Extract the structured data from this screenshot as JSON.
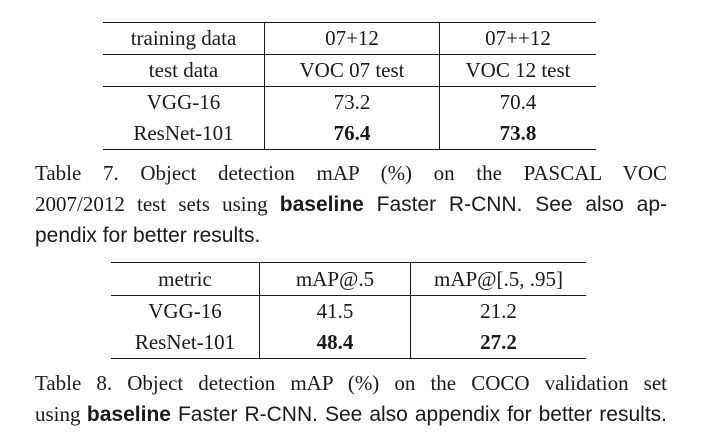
{
  "table7": {
    "header": [
      "training data",
      "07+12",
      "07++12"
    ],
    "subheader": [
      "test data",
      "VOC 07 test",
      "VOC 12 test"
    ],
    "rows": [
      {
        "model": "VGG-16",
        "values": [
          "73.2",
          "70.4"
        ]
      },
      {
        "model": "ResNet-101",
        "values": [
          "76.4",
          "73.8"
        ]
      }
    ],
    "caption": {
      "line1": "Table 7.  Object detection mAP (%) on the PASCAL VOC",
      "line2_a": "2007/2012 test sets using ",
      "line2_bold": "baseline",
      "line2_b": " Faster R-CNN. See also ap-",
      "line3": "pendix for better results."
    }
  },
  "table8": {
    "header": [
      "metric",
      "mAP@.5",
      "mAP@[.5, .95]"
    ],
    "rows": [
      {
        "model": "VGG-16",
        "values": [
          "41.5",
          "21.2"
        ]
      },
      {
        "model": "ResNet-101",
        "values": [
          "48.4",
          "27.2"
        ]
      }
    ],
    "caption": {
      "line1": "Table 8. Object detection mAP (%) on the COCO validation set",
      "line2_a": "using ",
      "line2_bold": "baseline",
      "line2_b": " Faster R-CNN. See also appendix for better results."
    }
  }
}
